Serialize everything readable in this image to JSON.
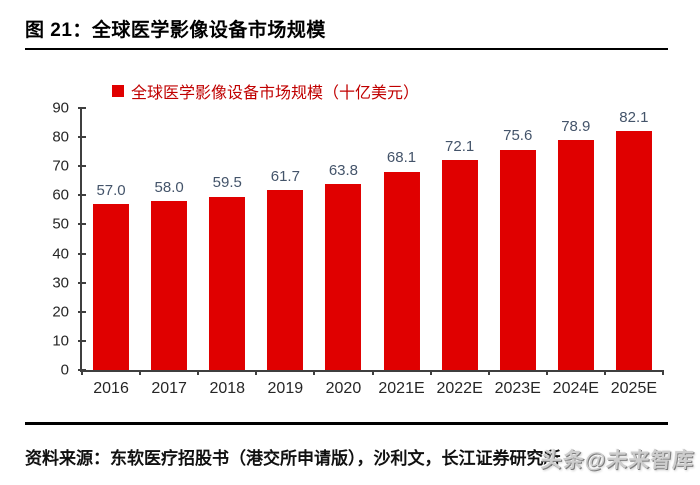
{
  "figure": {
    "header": "图 21：全球医学影像设备市场规模",
    "source": "资料来源：东软医疗招股书（港交所申请版），沙利文，长江证券研究所",
    "watermark": "头条@未来智库"
  },
  "chart_data": {
    "type": "bar",
    "title": "全球医学影像设备市场规模",
    "legend": "全球医学影像设备市场规模（十亿美元）",
    "legend_position": "top",
    "categories": [
      "2016",
      "2017",
      "2018",
      "2019",
      "2020",
      "2021E",
      "2022E",
      "2023E",
      "2024E",
      "2025E"
    ],
    "values": [
      57.0,
      58.0,
      59.5,
      61.7,
      63.8,
      68.1,
      72.1,
      75.6,
      78.9,
      82.1
    ],
    "labels": [
      "57.0",
      "58.0",
      "59.5",
      "61.7",
      "63.8",
      "68.1",
      "72.1",
      "75.6",
      "78.9",
      "82.1"
    ],
    "xlabel": "",
    "ylabel": "",
    "ylim": [
      0,
      90
    ],
    "yticks": [
      0,
      10,
      20,
      30,
      40,
      50,
      60,
      70,
      80,
      90
    ],
    "grid": false,
    "colors": {
      "bar": "#e00000",
      "legend_text": "#c00000",
      "data_label": "#44546a",
      "tick_label": "#262626",
      "axis": "#3f3f3f"
    }
  }
}
